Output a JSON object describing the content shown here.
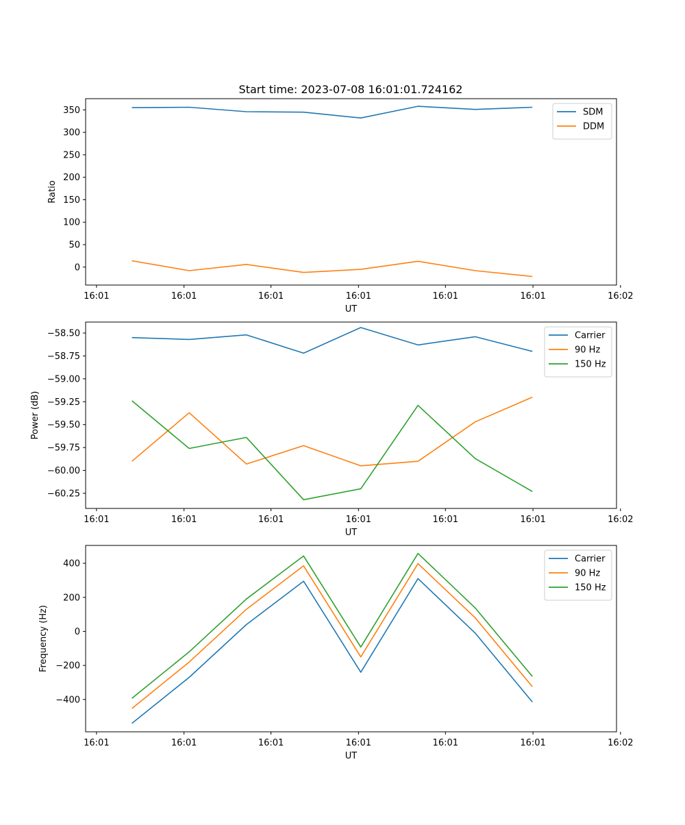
{
  "figure": {
    "title": "Start time: 2023-07-08 16:01:01.724162"
  },
  "chart_data": [
    {
      "type": "line",
      "title": "Start time: 2023-07-08 16:01:01.724162",
      "xlabel": "UT",
      "ylabel": "Ratio",
      "x": [
        1,
        2,
        3,
        4,
        5,
        6,
        7,
        8
      ],
      "xlim": [
        0.19,
        9.47
      ],
      "x_ticks": [
        0.38,
        1.91,
        3.43,
        4.96,
        6.48,
        8.01,
        9.54
      ],
      "x_tick_labels": [
        "16:01",
        "16:01",
        "16:01",
        "16:01",
        "16:01",
        "16:01",
        "16:02"
      ],
      "ylim": [
        -40,
        375
      ],
      "y_ticks": [
        0,
        50,
        100,
        150,
        200,
        250,
        300,
        350
      ],
      "legend": "upper right",
      "series": [
        {
          "name": "SDM",
          "color": "#1f77b4",
          "values": [
            355,
            356,
            346,
            345,
            332,
            358,
            351,
            356
          ]
        },
        {
          "name": "DDM",
          "color": "#ff7f0e",
          "values": [
            14,
            -8,
            6,
            -12,
            -5,
            13,
            -8,
            -21
          ]
        }
      ]
    },
    {
      "type": "line",
      "title": "",
      "xlabel": "UT",
      "ylabel": "Power (dB)",
      "x": [
        1,
        2,
        3,
        4,
        5,
        6,
        7,
        8
      ],
      "xlim": [
        0.19,
        9.47
      ],
      "x_ticks": [
        0.38,
        1.91,
        3.43,
        4.96,
        6.48,
        8.01,
        9.54
      ],
      "x_tick_labels": [
        "16:01",
        "16:01",
        "16:01",
        "16:01",
        "16:01",
        "16:01",
        "16:02"
      ],
      "ylim": [
        -60.415,
        -58.38
      ],
      "y_ticks": [
        -58.5,
        -58.75,
        -59.0,
        -59.25,
        -59.5,
        -59.75,
        -60.0,
        -60.25
      ],
      "y_tick_labels": [
        "−58.50",
        "−58.75",
        "−59.00",
        "−59.25",
        "−59.50",
        "−59.75",
        "−60.00",
        "−60.25"
      ],
      "legend": "upper right",
      "series": [
        {
          "name": "Carrier",
          "color": "#1f77b4",
          "values": [
            -58.55,
            -58.57,
            -58.52,
            -58.72,
            -58.44,
            -58.63,
            -58.54,
            -58.7
          ]
        },
        {
          "name": "90 Hz",
          "color": "#ff7f0e",
          "values": [
            -59.9,
            -59.37,
            -59.93,
            -59.73,
            -59.95,
            -59.9,
            -59.47,
            -59.2
          ]
        },
        {
          "name": "150 Hz",
          "color": "#2ca02c",
          "values": [
            -59.24,
            -59.76,
            -59.64,
            -60.32,
            -60.2,
            -59.29,
            -59.87,
            -60.23
          ]
        }
      ]
    },
    {
      "type": "line",
      "title": "",
      "xlabel": "UT",
      "ylabel": "Frequency (Hz)",
      "x": [
        1,
        2,
        3,
        4,
        5,
        6,
        7,
        8
      ],
      "xlim": [
        0.19,
        9.47
      ],
      "x_ticks": [
        0.38,
        1.91,
        3.43,
        4.96,
        6.48,
        8.01,
        9.54
      ],
      "x_tick_labels": [
        "16:01",
        "16:01",
        "16:01",
        "16:01",
        "16:01",
        "16:01",
        "16:02"
      ],
      "ylim": [
        -590,
        505
      ],
      "y_ticks": [
        400,
        200,
        0,
        -200,
        -400
      ],
      "y_tick_labels": [
        "400",
        "200",
        "0",
        "−200",
        "−400"
      ],
      "legend": "upper right",
      "series": [
        {
          "name": "Carrier",
          "color": "#1f77b4",
          "values": [
            -540,
            -270,
            40,
            295,
            -240,
            310,
            -10,
            -415
          ]
        },
        {
          "name": "90 Hz",
          "color": "#ff7f0e",
          "values": [
            -453,
            -180,
            130,
            385,
            -150,
            398,
            80,
            -325
          ]
        },
        {
          "name": "150 Hz",
          "color": "#2ca02c",
          "values": [
            -393,
            -120,
            190,
            443,
            -92,
            458,
            138,
            -265
          ]
        }
      ]
    }
  ]
}
